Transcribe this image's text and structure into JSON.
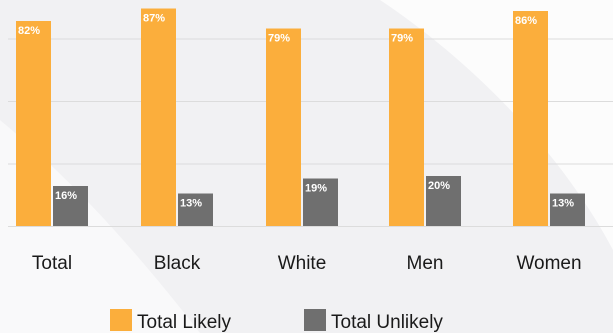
{
  "chart_data": {
    "type": "bar",
    "categories": [
      "Total",
      "Black",
      "White",
      "Men",
      "Women"
    ],
    "series": [
      {
        "name": "Total Likely",
        "values": [
          82,
          87,
          79,
          79,
          86
        ],
        "labels": [
          "82%",
          "87%",
          "79%",
          "79%",
          "86%"
        ],
        "color": "#fbae3c"
      },
      {
        "name": "Total Unlikely",
        "values": [
          16,
          13,
          19,
          20,
          13
        ],
        "labels": [
          "16%",
          "13%",
          "19%",
          "20%",
          "13%"
        ],
        "color": "#6f6f6f"
      }
    ],
    "ylim": [
      0,
      90
    ],
    "grid": true,
    "legend_position": "bottom-center"
  },
  "colors": {
    "background": "#f1f1f3",
    "accent_arc": "#ffffff",
    "gridline": "#dcdcdc",
    "axis_text": "#1a1a1a",
    "bar_label_text": "#ffffff"
  }
}
